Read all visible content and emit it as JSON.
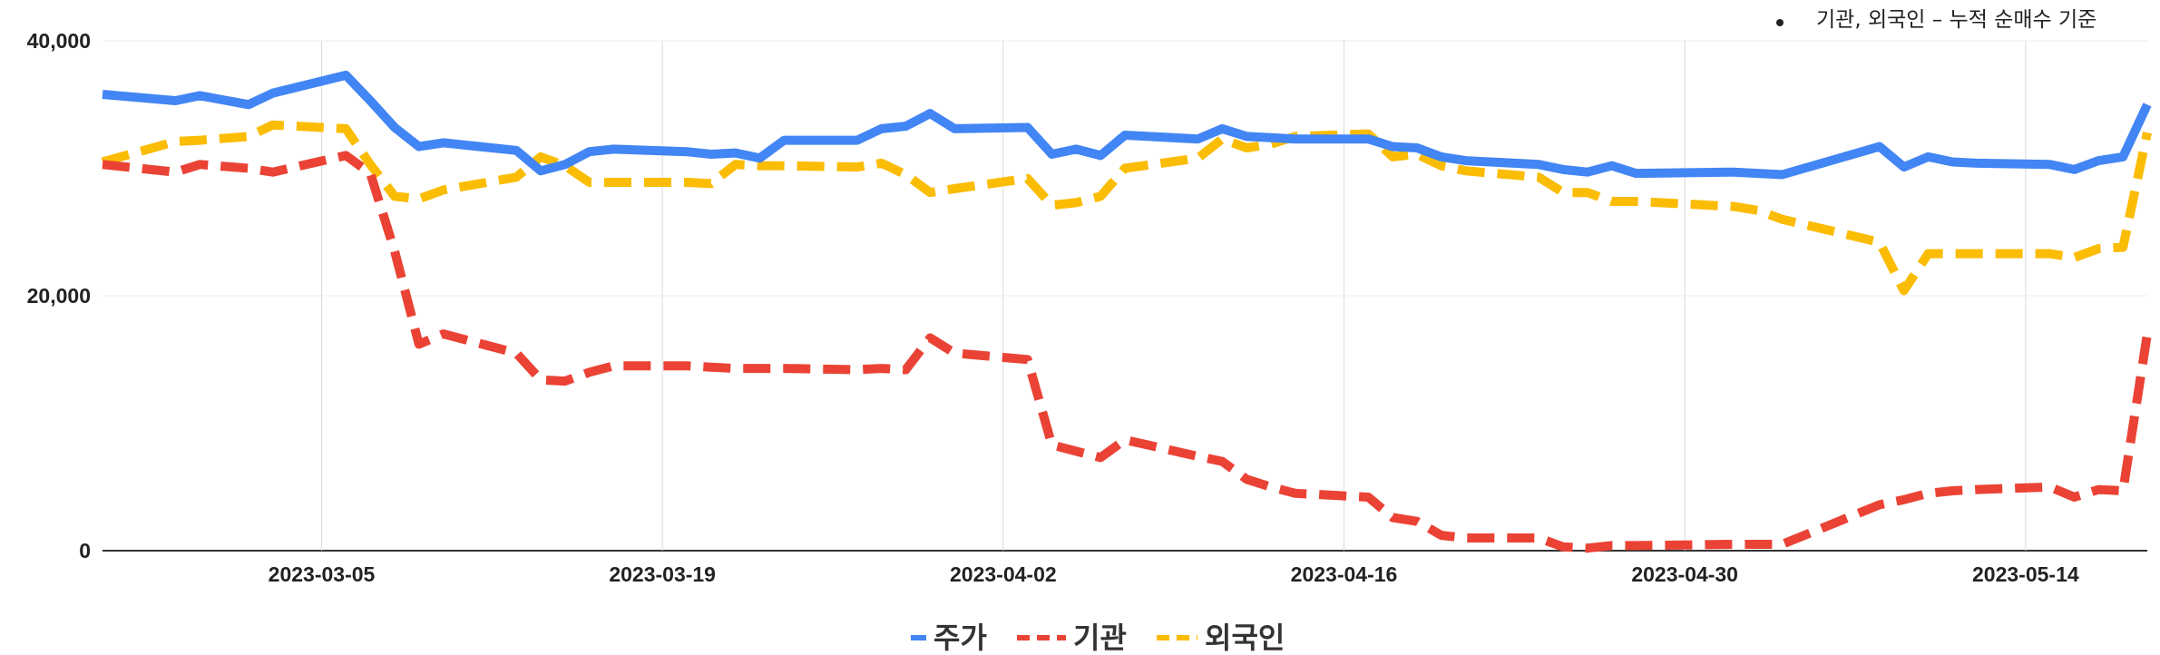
{
  "chart_data": {
    "type": "line",
    "title": "",
    "note": "기관, 외국인 – 누적 순매수 기준",
    "xlabel": "",
    "ylabel": "",
    "ylim": [
      0,
      40000
    ],
    "y_ticks": [
      0,
      20000,
      40000
    ],
    "y_tick_labels": [
      "0",
      "20,000",
      "40,000"
    ],
    "x_ticks": [
      "2023-03-05",
      "2023-03-19",
      "2023-04-02",
      "2023-04-16",
      "2023-04-30",
      "2023-05-14"
    ],
    "x_range": [
      "2023-02-24",
      "2023-05-19"
    ],
    "grid": true,
    "legend_position": "bottom",
    "x": [
      "2023-02-24",
      "2023-02-27",
      "2023-02-28",
      "2023-03-02",
      "2023-03-03",
      "2023-03-06",
      "2023-03-07",
      "2023-03-08",
      "2023-03-09",
      "2023-03-10",
      "2023-03-13",
      "2023-03-14",
      "2023-03-15",
      "2023-03-16",
      "2023-03-17",
      "2023-03-20",
      "2023-03-21",
      "2023-03-22",
      "2023-03-23",
      "2023-03-24",
      "2023-03-27",
      "2023-03-28",
      "2023-03-29",
      "2023-03-30",
      "2023-03-31",
      "2023-04-03",
      "2023-04-04",
      "2023-04-05",
      "2023-04-06",
      "2023-04-07",
      "2023-04-10",
      "2023-04-11",
      "2023-04-12",
      "2023-04-13",
      "2023-04-14",
      "2023-04-17",
      "2023-04-18",
      "2023-04-19",
      "2023-04-20",
      "2023-04-21",
      "2023-04-24",
      "2023-04-25",
      "2023-04-26",
      "2023-04-27",
      "2023-04-28",
      "2023-05-02",
      "2023-05-03",
      "2023-05-04",
      "2023-05-08",
      "2023-05-09",
      "2023-05-10",
      "2023-05-11",
      "2023-05-12",
      "2023-05-15",
      "2023-05-16",
      "2023-05-17",
      "2023-05-18",
      "2023-05-19"
    ],
    "series": [
      {
        "name": "주가",
        "color": "#4285F4",
        "dash": "solid",
        "values": [
          35800,
          35300,
          35700,
          35000,
          35900,
          37300,
          35300,
          33200,
          31700,
          32000,
          31400,
          29800,
          30300,
          31300,
          31500,
          31300,
          31100,
          31200,
          30800,
          32200,
          32200,
          33100,
          33300,
          34300,
          33100,
          33200,
          31100,
          31500,
          31000,
          32600,
          32300,
          33100,
          32500,
          32400,
          32300,
          32300,
          31700,
          31600,
          30900,
          30600,
          30300,
          29900,
          29700,
          30200,
          29600,
          29700,
          29600,
          29500,
          31700,
          30100,
          30900,
          30500,
          30400,
          30300,
          29900,
          30600,
          30900,
          35000
        ]
      },
      {
        "name": "기관",
        "color": "#EA4335",
        "dash": "dashed",
        "values": [
          30300,
          29700,
          30300,
          30000,
          29700,
          31000,
          29600,
          23500,
          16200,
          17000,
          15500,
          13400,
          13300,
          14000,
          14500,
          14500,
          14400,
          14300,
          14300,
          14300,
          14200,
          14300,
          14200,
          16700,
          15500,
          15000,
          8300,
          7800,
          7300,
          8700,
          7400,
          7000,
          5600,
          5000,
          4500,
          4200,
          2600,
          2300,
          1200,
          1000,
          1000,
          300,
          200,
          400,
          400,
          500,
          500,
          500,
          3600,
          4000,
          4500,
          4700,
          4800,
          5000,
          4200,
          4800,
          4700,
          17000
        ]
      },
      {
        "name": "외국인",
        "color": "#FBBC04",
        "dash": "dashed",
        "values": [
          30500,
          32100,
          32200,
          32500,
          33400,
          33100,
          30300,
          27800,
          27600,
          28300,
          29300,
          30900,
          30200,
          28900,
          28900,
          28900,
          28800,
          30300,
          30200,
          30200,
          30100,
          30400,
          29500,
          28100,
          28400,
          29200,
          27100,
          27300,
          27800,
          30000,
          30800,
          32300,
          31600,
          31900,
          32500,
          32700,
          30900,
          31100,
          30200,
          29800,
          29300,
          28100,
          28100,
          27400,
          27400,
          27000,
          26700,
          26000,
          24200,
          20400,
          23300,
          23300,
          23300,
          23300,
          23000,
          23700,
          23800,
          32800
        ]
      }
    ]
  }
}
